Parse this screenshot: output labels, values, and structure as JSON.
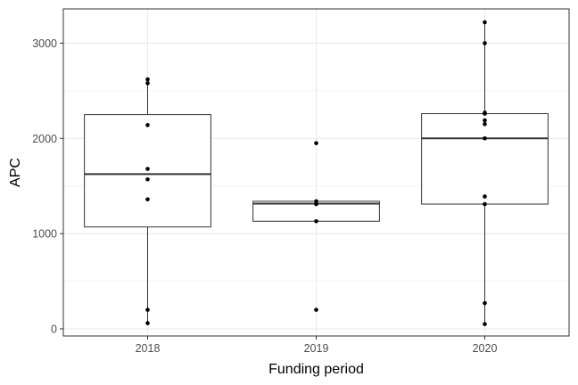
{
  "chart_data": {
    "type": "boxplot",
    "xlabel": "Funding period",
    "ylabel": "APC",
    "categories": [
      "2018",
      "2019",
      "2020"
    ],
    "ylim": [
      -75,
      3360
    ],
    "yticks": [
      0,
      1000,
      2000,
      3000
    ],
    "grid": true,
    "legend": "none",
    "boxes": [
      {
        "category": "2018",
        "q1": 1070,
        "median": 1625,
        "q3": 2250,
        "whisker_low": 60,
        "whisker_high": 2620
      },
      {
        "category": "2019",
        "q1": 1130,
        "median": 1315,
        "q3": 1340,
        "whisker_low": 1130,
        "whisker_high": 1340
      },
      {
        "category": "2020",
        "q1": 1310,
        "median": 2000,
        "q3": 2260,
        "whisker_low": 50,
        "whisker_high": 3220
      }
    ],
    "points": [
      {
        "category": "2018",
        "values": [
          2620,
          2580,
          2140,
          1680,
          1570,
          1360,
          200,
          60
        ]
      },
      {
        "category": "2019",
        "values": [
          1950,
          1340,
          1310,
          1130,
          200
        ]
      },
      {
        "category": "2020",
        "values": [
          3220,
          3000,
          2270,
          2260,
          2190,
          2150,
          2000,
          1390,
          1310,
          270,
          50
        ]
      }
    ],
    "colors": {
      "background": "#ffffff",
      "grid": "#ebebeb",
      "box_stroke": "#333333",
      "point": "#000000",
      "panel_border": "#333333"
    }
  }
}
